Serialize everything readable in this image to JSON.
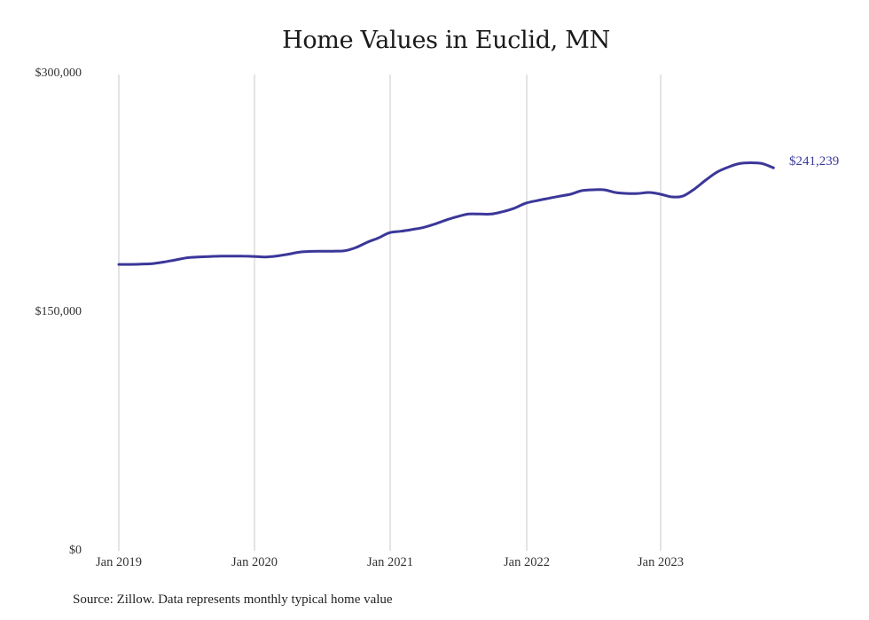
{
  "chart": {
    "title": "Home Values in Euclid, MN",
    "source": "Source: Zillow. Data represents monthly typical home value",
    "end_label": "$241,239",
    "y_ticks": [
      "$300,000",
      "$150,000",
      "$0"
    ],
    "x_ticks": [
      "Jan 2019",
      "Jan 2020",
      "Jan 2021",
      "Jan 2022",
      "Jan 2023"
    ],
    "line_color": "#3b3799",
    "grid_color": "#c8c8c8"
  },
  "chart_data": {
    "type": "line",
    "title": "Home Values in Euclid, MN",
    "xlabel": "",
    "ylabel": "",
    "ylim": [
      0,
      300000
    ],
    "grid": "vertical gridlines at each January",
    "legend": "none",
    "annotations": [
      "$241,239 (latest value)",
      "Source: Zillow. Data represents monthly typical home value"
    ],
    "x": [
      "2019-01",
      "2019-02",
      "2019-03",
      "2019-04",
      "2019-05",
      "2019-06",
      "2019-07",
      "2019-08",
      "2019-09",
      "2019-10",
      "2019-11",
      "2019-12",
      "2020-01",
      "2020-02",
      "2020-03",
      "2020-04",
      "2020-05",
      "2020-06",
      "2020-07",
      "2020-08",
      "2020-09",
      "2020-10",
      "2020-11",
      "2020-12",
      "2021-01",
      "2021-02",
      "2021-03",
      "2021-04",
      "2021-05",
      "2021-06",
      "2021-07",
      "2021-08",
      "2021-09",
      "2021-10",
      "2021-11",
      "2021-12",
      "2022-01",
      "2022-02",
      "2022-03",
      "2022-04",
      "2022-05",
      "2022-06",
      "2022-07",
      "2022-08",
      "2022-09",
      "2022-10",
      "2022-11",
      "2022-12",
      "2023-01",
      "2023-02",
      "2023-03",
      "2023-04",
      "2023-05",
      "2023-06",
      "2023-07",
      "2023-08",
      "2023-09",
      "2023-10",
      "2023-11"
    ],
    "series": [
      {
        "name": "Typical home value",
        "values": [
          180400,
          180400,
          180600,
          180900,
          181900,
          183200,
          184500,
          185000,
          185300,
          185600,
          185600,
          185600,
          185400,
          185100,
          185700,
          186800,
          188100,
          188600,
          188700,
          188700,
          189000,
          191000,
          194300,
          197100,
          200400,
          201300,
          202400,
          203700,
          205800,
          208300,
          210500,
          212100,
          212100,
          212100,
          213600,
          215700,
          218800,
          220500,
          221900,
          223300,
          224600,
          226800,
          227400,
          227400,
          225700,
          225100,
          225100,
          225700,
          224600,
          222900,
          223500,
          227900,
          233500,
          238500,
          241700,
          243900,
          244400,
          243900,
          241239
        ]
      }
    ]
  }
}
